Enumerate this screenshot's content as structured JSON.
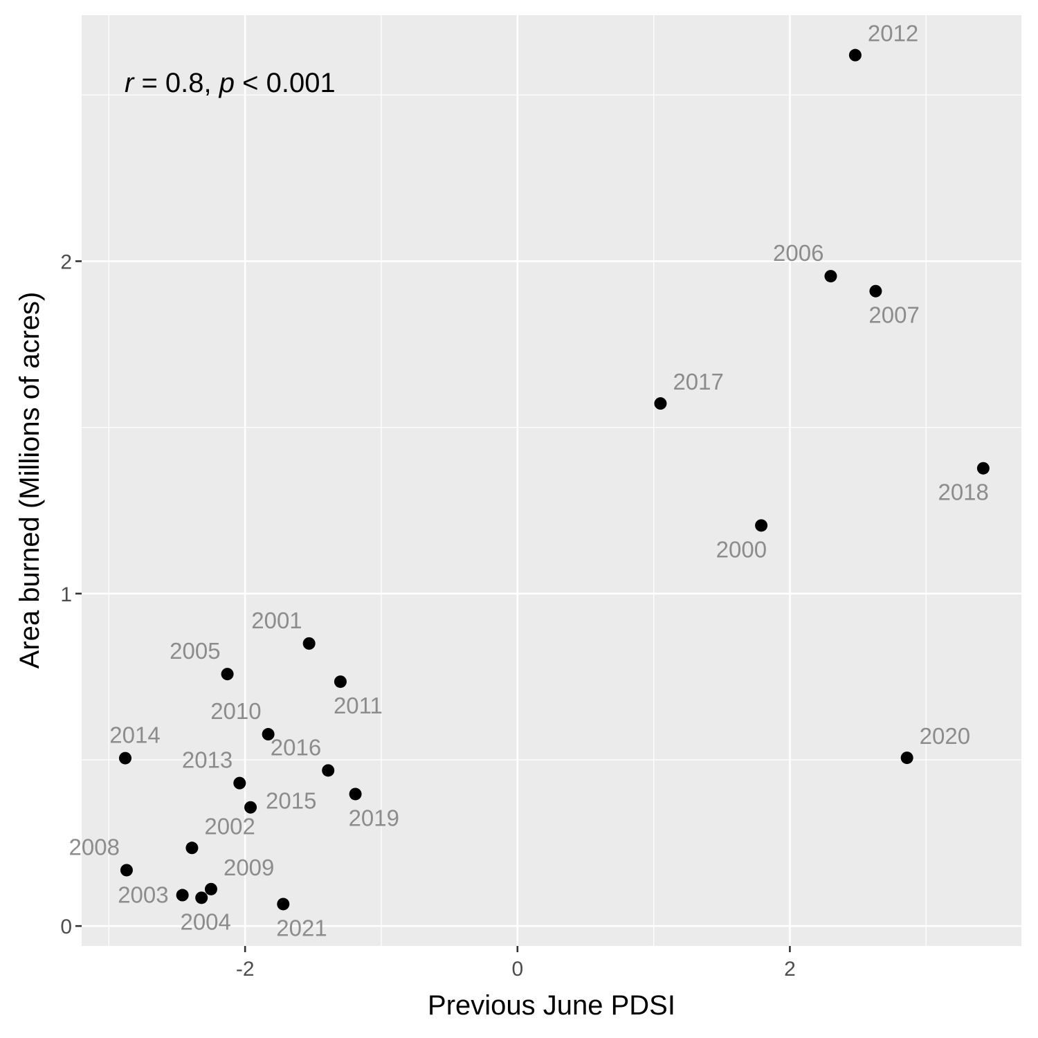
{
  "chart_data": {
    "type": "scatter",
    "title": "",
    "xlabel": "Previous June PDSI",
    "ylabel": "Area burned (Millions of acres)",
    "xlim": [
      -3.2,
      3.7
    ],
    "ylim": [
      -0.06,
      2.74
    ],
    "x_ticks": [
      -2,
      0,
      2
    ],
    "x_tick_labels": [
      "-2",
      "0",
      "2"
    ],
    "x_minor_ticks": [
      -3,
      -1,
      1,
      3
    ],
    "y_ticks": [
      0,
      1,
      2
    ],
    "y_tick_labels": [
      "0",
      "1",
      "2"
    ],
    "y_minor_ticks": [
      0.5,
      1.5,
      2.5
    ],
    "grid": true,
    "colors": {
      "panel_background": "#ebebeb",
      "grid": "#ffffff",
      "point": "#000000",
      "point_label": "#8c8c8c",
      "axis_tick": "#333333"
    },
    "annotation": {
      "r_symbol": "r",
      "r_text": " = 0.8, ",
      "p_symbol": "p",
      "p_text": " < 0.001"
    },
    "points": [
      {
        "label": "2000",
        "x": 1.79,
        "y": 1.205,
        "label_pos": "below-left"
      },
      {
        "label": "2001",
        "x": -1.53,
        "y": 0.85,
        "label_pos": "above-left"
      },
      {
        "label": "2002",
        "x": -2.39,
        "y": 0.235,
        "label_pos": "above-right"
      },
      {
        "label": "2003",
        "x": -2.46,
        "y": 0.093,
        "label_pos": "left"
      },
      {
        "label": "2004",
        "x": -2.32,
        "y": 0.085,
        "label_pos": "below"
      },
      {
        "label": "2005",
        "x": -2.13,
        "y": 0.758,
        "label_pos": "above-left"
      },
      {
        "label": "2006",
        "x": 2.3,
        "y": 1.955,
        "label_pos": "above-left"
      },
      {
        "label": "2007",
        "x": 2.63,
        "y": 1.91,
        "label_pos": "below-right"
      },
      {
        "label": "2008",
        "x": -2.87,
        "y": 0.168,
        "label_pos": "above-left"
      },
      {
        "label": "2009",
        "x": -2.25,
        "y": 0.111,
        "label_pos": "above-right"
      },
      {
        "label": "2010",
        "x": -1.83,
        "y": 0.577,
        "label_pos": "above-left"
      },
      {
        "label": "2011",
        "x": -1.3,
        "y": 0.735,
        "label_pos": "below-right"
      },
      {
        "label": "2012",
        "x": 2.48,
        "y": 2.62,
        "label_pos": "above-right"
      },
      {
        "label": "2013",
        "x": -2.04,
        "y": 0.43,
        "label_pos": "above-left"
      },
      {
        "label": "2014",
        "x": -2.88,
        "y": 0.505,
        "label_pos": "above"
      },
      {
        "label": "2015",
        "x": -1.96,
        "y": 0.357,
        "label_pos": "right"
      },
      {
        "label": "2016",
        "x": -1.39,
        "y": 0.468,
        "label_pos": "above-left"
      },
      {
        "label": "2017",
        "x": 1.05,
        "y": 1.572,
        "label_pos": "above-right"
      },
      {
        "label": "2018",
        "x": 3.42,
        "y": 1.377,
        "label_pos": "below-left"
      },
      {
        "label": "2019",
        "x": -1.19,
        "y": 0.397,
        "label_pos": "below-right"
      },
      {
        "label": "2020",
        "x": 2.86,
        "y": 0.506,
        "label_pos": "above-right"
      },
      {
        "label": "2021",
        "x": -1.72,
        "y": 0.066,
        "label_pos": "below-right"
      }
    ]
  }
}
